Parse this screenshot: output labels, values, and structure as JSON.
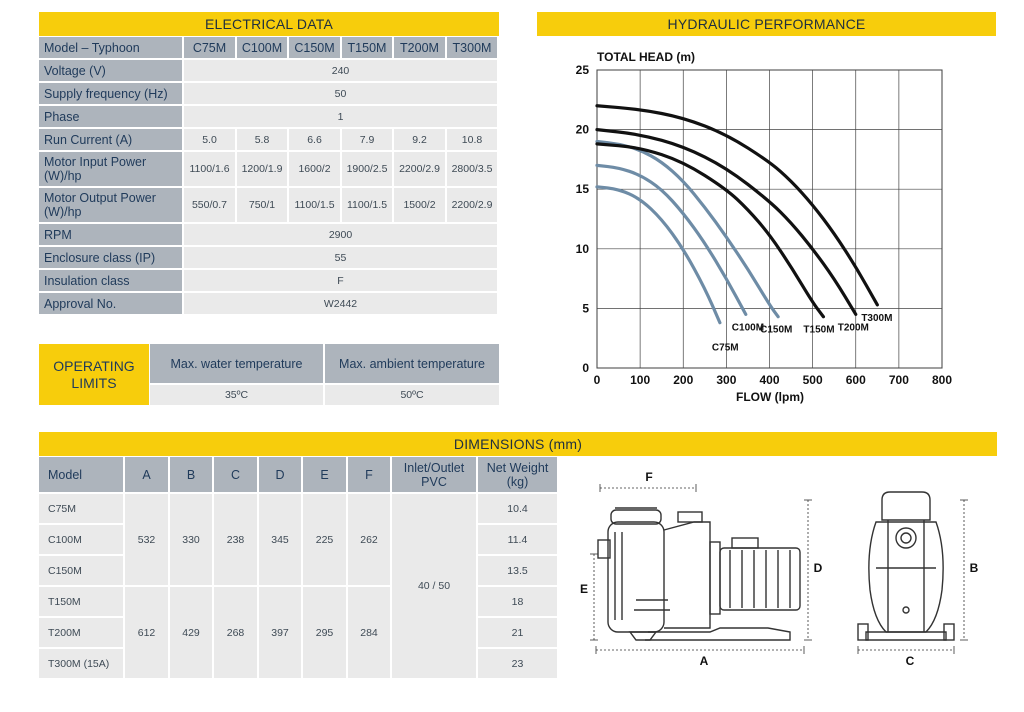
{
  "electrical": {
    "title": "ELECTRICAL DATA",
    "header": {
      "label": "Model – Typhoon",
      "models": [
        "C75M",
        "C100M",
        "C150M",
        "T150M",
        "T200M",
        "T300M"
      ]
    },
    "rows": {
      "voltage": {
        "label": "Voltage (V)",
        "value": "240"
      },
      "frequency": {
        "label": "Supply frequency (Hz)",
        "value": "50"
      },
      "phase": {
        "label": "Phase",
        "value": "1"
      },
      "current": {
        "label": "Run Current (A)",
        "values": [
          "5.0",
          "5.8",
          "6.6",
          "7.9",
          "9.2",
          "10.8"
        ]
      },
      "input_power": {
        "label_line1": "Motor Input Power",
        "label_line2": "(W)/hp",
        "values": [
          "1100/1.6",
          "1200/1.9",
          "1600/2",
          "1900/2.5",
          "2200/2.9",
          "2800/3.5"
        ]
      },
      "output_power": {
        "label_line1": "Motor Output Power",
        "label_line2": "(W)/hp",
        "values": [
          "550/0.7",
          "750/1",
          "1100/1.5",
          "1100/1.5",
          "1500/2",
          "2200/2.9"
        ]
      },
      "rpm": {
        "label": "RPM",
        "value": "2900"
      },
      "enclosure": {
        "label": "Enclosure class (IP)",
        "value": "55"
      },
      "insulation": {
        "label": "Insulation class",
        "value": "F"
      },
      "approval": {
        "label": "Approval No.",
        "value": "W2442"
      }
    }
  },
  "operating": {
    "label_line1": "OPERATING",
    "label_line2": "LIMITS",
    "water_label": "Max. water temperature",
    "water_value": "35ºC",
    "ambient_label": "Max. ambient temperature",
    "ambient_value": "50ºC"
  },
  "hydraulic": {
    "title": "HYDRAULIC PERFORMANCE",
    "chart_data": {
      "type": "line",
      "title": "HYDRAULIC PERFORMANCE",
      "ylabel": "TOTAL HEAD (m)",
      "xlabel": "FLOW (lpm)",
      "xlim": [
        0,
        800
      ],
      "ylim": [
        0,
        25
      ],
      "xticks": [
        0,
        100,
        200,
        300,
        400,
        500,
        600,
        700,
        800
      ],
      "yticks": [
        0,
        5,
        10,
        15,
        20,
        25
      ],
      "grid": true,
      "series_colors": {
        "C": "#6e8ca6",
        "T": "#111111"
      },
      "series": [
        {
          "name": "C75M",
          "color_group": "C",
          "x": [
            0,
            50,
            100,
            150,
            200,
            250,
            285
          ],
          "y": [
            15.2,
            15.0,
            14.2,
            12.5,
            10.0,
            6.7,
            3.8
          ]
        },
        {
          "name": "C100M",
          "color_group": "C",
          "x": [
            0,
            50,
            100,
            150,
            200,
            250,
            300,
            345
          ],
          "y": [
            17.0,
            16.8,
            16.2,
            15.0,
            13.0,
            10.5,
            7.5,
            4.5
          ]
        },
        {
          "name": "C150M",
          "color_group": "C",
          "x": [
            0,
            50,
            100,
            150,
            200,
            250,
            300,
            350,
            400,
            420
          ],
          "y": [
            19.0,
            18.8,
            18.3,
            17.3,
            15.7,
            13.5,
            11.0,
            8.3,
            5.3,
            4.3
          ]
        },
        {
          "name": "T150M",
          "color_group": "T",
          "x": [
            0,
            100,
            200,
            300,
            350,
            400,
            450,
            500,
            525
          ],
          "y": [
            18.8,
            18.5,
            17.3,
            15.0,
            13.3,
            11.2,
            8.5,
            5.5,
            4.3
          ]
        },
        {
          "name": "T200M",
          "color_group": "T",
          "x": [
            0,
            100,
            200,
            300,
            400,
            450,
            500,
            550,
            600
          ],
          "y": [
            20.0,
            19.6,
            18.6,
            16.8,
            14.0,
            12.2,
            10.0,
            7.5,
            4.5
          ]
        },
        {
          "name": "T300M",
          "color_group": "T",
          "x": [
            0,
            100,
            200,
            300,
            400,
            450,
            500,
            550,
            600,
            650
          ],
          "y": [
            22.0,
            21.7,
            21.0,
            19.6,
            17.3,
            15.7,
            13.7,
            11.3,
            8.5,
            5.3
          ]
        }
      ]
    }
  },
  "dimensions": {
    "title": "DIMENSIONS (mm)",
    "headers": {
      "model": "Model",
      "a": "A",
      "b": "B",
      "c": "C",
      "d": "D",
      "e": "E",
      "f": "F",
      "inlet_line1": "Inlet/Outlet",
      "inlet_line2": "PVC",
      "weight_line1": "Net Weight",
      "weight_line2": "(kg)"
    },
    "models": [
      "C75M",
      "C100M",
      "C150M",
      "T150M",
      "T200M",
      "T300M (15A)"
    ],
    "weights": [
      "10.4",
      "11.4",
      "13.5",
      "18",
      "21",
      "23"
    ],
    "group_c": {
      "a": "532",
      "b": "330",
      "c": "238",
      "d": "345",
      "e": "225",
      "f": "262"
    },
    "group_t": {
      "a": "612",
      "b": "429",
      "c": "268",
      "d": "397",
      "e": "295",
      "f": "284"
    },
    "inlet": "40 / 50",
    "drawing_labels": {
      "a": "A",
      "b": "B",
      "c": "C",
      "d": "D",
      "e": "E",
      "f": "F"
    }
  }
}
